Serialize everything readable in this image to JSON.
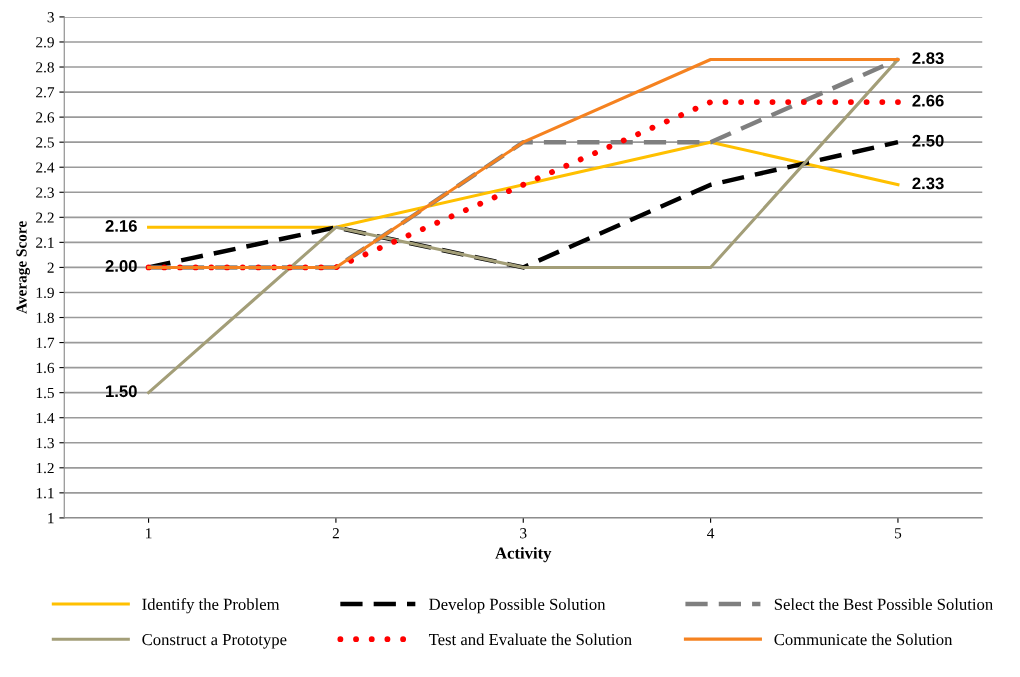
{
  "chart_data": {
    "type": "line",
    "xlabel": "Activity",
    "ylabel": "Average Score",
    "categories": [
      "1",
      "2",
      "3",
      "4",
      "5"
    ],
    "series": [
      {
        "name": "Identify the Problem",
        "color": "#ffc000",
        "line_style": "solid",
        "values": [
          2.16,
          2.16,
          2.33,
          2.5,
          2.33
        ]
      },
      {
        "name": "Develop Possible Solution",
        "color": "#000000",
        "line_style": "dashed",
        "values": [
          2.0,
          2.16,
          2.0,
          2.33,
          2.5
        ]
      },
      {
        "name": "Select the Best Possible Solution",
        "color": "#7f7f7f",
        "line_style": "dashed",
        "values": [
          2.0,
          2.0,
          2.5,
          2.5,
          2.83
        ]
      },
      {
        "name": "Construct a Prototype",
        "color": "#a39e78",
        "line_style": "solid",
        "values": [
          1.5,
          2.16,
          2.0,
          2.0,
          2.83
        ]
      },
      {
        "name": "Test and Evaluate the Solution",
        "color": "#ff0000",
        "line_style": "dotted",
        "values": [
          2.0,
          2.0,
          2.33,
          2.66,
          2.66
        ]
      },
      {
        "name": "Communicate the Solution",
        "color": "#f58220",
        "line_style": "solid",
        "values": [
          2.0,
          2.0,
          2.5,
          2.83,
          2.83
        ]
      }
    ],
    "ylim": [
      1,
      3
    ],
    "yticks": [
      1,
      1.1,
      1.2,
      1.3,
      1.4,
      1.5,
      1.6,
      1.7,
      1.8,
      1.9,
      2,
      2.1,
      2.2,
      2.3,
      2.4,
      2.5,
      2.6,
      2.7,
      2.8,
      2.9,
      3
    ],
    "grid": "y",
    "legend": "bottom",
    "marker": "none",
    "annotations": [
      {
        "text": "2.16",
        "x": "1",
        "y": 2.16
      },
      {
        "text": "2.00",
        "x": "1",
        "y": 2.0
      },
      {
        "text": "1.50",
        "x": "1",
        "y": 1.5
      },
      {
        "text": "2.83",
        "x": "5",
        "y": 2.83
      },
      {
        "text": "2.66",
        "x": "5",
        "y": 2.66
      },
      {
        "text": "2.50",
        "x": "5",
        "y": 2.5
      },
      {
        "text": "2.33",
        "x": "5",
        "y": 2.33
      }
    ]
  }
}
